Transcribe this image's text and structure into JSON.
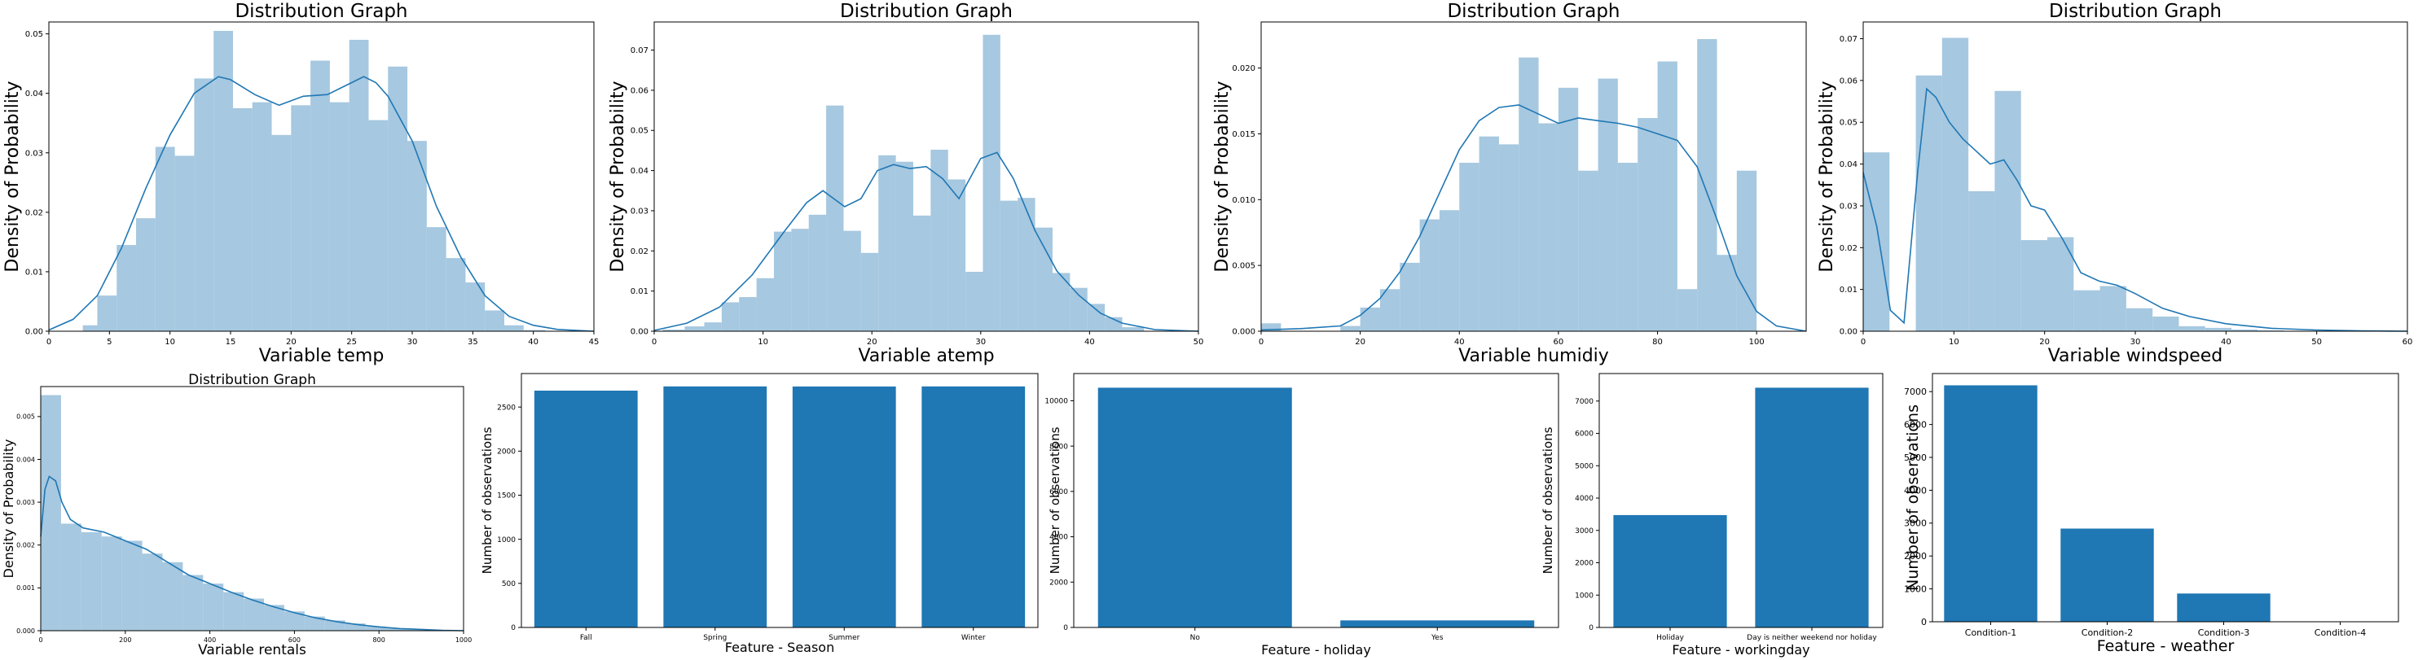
{
  "chart_data": [
    {
      "type": "histogram",
      "title": "Distribution Graph",
      "xlabel": "Variable temp",
      "ylabel": "Density of Probability",
      "xlim": [
        0,
        45
      ],
      "ylim": [
        0,
        0.052
      ],
      "xticks": [
        0,
        5,
        10,
        15,
        20,
        25,
        30,
        35,
        40,
        45
      ],
      "yticks": [
        0.0,
        0.01,
        0.02,
        0.03,
        0.04,
        0.05
      ],
      "ytick_decimals": 2,
      "bin_edges": [
        0.8,
        2.8,
        4.0,
        5.6,
        7.2,
        8.8,
        10.4,
        12.0,
        13.6,
        15.2,
        16.8,
        18.4,
        20.0,
        21.6,
        23.2,
        24.8,
        26.4,
        28.0,
        29.6,
        31.2,
        32.8,
        34.4,
        36.0,
        37.6,
        39.2,
        41.0
      ],
      "bin_values": [
        0.0,
        0.001,
        0.006,
        0.0145,
        0.019,
        0.031,
        0.0295,
        0.0425,
        0.0505,
        0.0375,
        0.0385,
        0.033,
        0.038,
        0.0455,
        0.0385,
        0.049,
        0.0355,
        0.0445,
        0.032,
        0.0175,
        0.0123,
        0.0082,
        0.0035,
        0.001,
        0.0002
      ],
      "kde": {
        "x": [
          0,
          2,
          4,
          6,
          8,
          10,
          12,
          14,
          15,
          17,
          19,
          21,
          23,
          25,
          26,
          27,
          28,
          30,
          32,
          34,
          36,
          38,
          40,
          42,
          45
        ],
        "y": [
          0.0002,
          0.002,
          0.006,
          0.014,
          0.024,
          0.033,
          0.04,
          0.0428,
          0.0423,
          0.0398,
          0.038,
          0.0395,
          0.0398,
          0.0418,
          0.0428,
          0.0418,
          0.0395,
          0.032,
          0.021,
          0.0125,
          0.006,
          0.0025,
          0.001,
          0.0003,
          0.0
        ]
      }
    },
    {
      "type": "histogram",
      "title": "Distribution Graph",
      "xlabel": "Variable atemp",
      "ylabel": "Density of Probability",
      "xlim": [
        0,
        50
      ],
      "ylim": [
        0,
        0.077
      ],
      "xticks": [
        0,
        10,
        20,
        30,
        40,
        50
      ],
      "yticks": [
        0.0,
        0.01,
        0.02,
        0.03,
        0.04,
        0.05,
        0.06,
        0.07
      ],
      "ytick_decimals": 2,
      "bin_edges": [
        0.8,
        2.8,
        4.6,
        6.2,
        7.8,
        9.4,
        11.0,
        12.6,
        14.2,
        15.8,
        17.4,
        19.0,
        20.6,
        22.2,
        23.8,
        25.4,
        27.0,
        28.6,
        30.2,
        31.8,
        33.4,
        35.0,
        36.6,
        38.2,
        39.8,
        41.4,
        43.0,
        45.0
      ],
      "bin_values": [
        0.0004,
        0.0012,
        0.0022,
        0.0072,
        0.0085,
        0.0132,
        0.0248,
        0.0255,
        0.029,
        0.0562,
        0.025,
        0.0195,
        0.0438,
        0.0422,
        0.0288,
        0.0452,
        0.0378,
        0.0148,
        0.0738,
        0.0325,
        0.0332,
        0.0258,
        0.0145,
        0.0108,
        0.0068,
        0.0035,
        0.001
      ],
      "kde": {
        "x": [
          0,
          3,
          6,
          9,
          12,
          14,
          15.5,
          17.5,
          19,
          20.5,
          22,
          23.5,
          25,
          26.5,
          28,
          30,
          31.5,
          33,
          35,
          37,
          39,
          41,
          43,
          46,
          50
        ],
        "y": [
          0.0002,
          0.002,
          0.006,
          0.014,
          0.025,
          0.032,
          0.035,
          0.031,
          0.033,
          0.04,
          0.0415,
          0.0405,
          0.041,
          0.038,
          0.033,
          0.043,
          0.0445,
          0.038,
          0.025,
          0.015,
          0.009,
          0.0045,
          0.002,
          0.0004,
          0.0
        ]
      }
    },
    {
      "type": "histogram",
      "title": "Distribution Graph",
      "xlabel": "Variable humidiy",
      "ylabel": "Density of Probability",
      "xlim": [
        0,
        110
      ],
      "ylim": [
        0,
        0.0235
      ],
      "xticks": [
        0,
        20,
        40,
        60,
        80,
        100
      ],
      "yticks": [
        0.0,
        0.005,
        0.01,
        0.015,
        0.02
      ],
      "ytick_decimals": 3,
      "bin_edges": [
        0,
        4,
        8,
        12,
        16,
        20,
        24,
        28,
        32,
        36,
        40,
        44,
        48,
        52,
        56,
        60,
        64,
        68,
        72,
        76,
        80,
        84,
        88,
        92,
        96,
        100
      ],
      "bin_values": [
        0.0006,
        0.0,
        0.0,
        0.0,
        0.0004,
        0.0018,
        0.0032,
        0.0052,
        0.0085,
        0.0092,
        0.0128,
        0.0148,
        0.0142,
        0.0208,
        0.0158,
        0.0185,
        0.0122,
        0.0192,
        0.0128,
        0.0162,
        0.0205,
        0.0032,
        0.0222,
        0.0058,
        0.0122
      ],
      "kde": {
        "x": [
          0,
          8,
          16,
          20,
          24,
          28,
          32,
          36,
          40,
          44,
          48,
          52,
          56,
          60,
          64,
          68,
          72,
          76,
          80,
          84,
          88,
          92,
          96,
          100,
          104,
          110
        ],
        "y": [
          0.0001,
          0.0002,
          0.0004,
          0.0012,
          0.0025,
          0.0045,
          0.0072,
          0.0105,
          0.0138,
          0.016,
          0.017,
          0.0172,
          0.0165,
          0.0158,
          0.0162,
          0.016,
          0.0158,
          0.0155,
          0.015,
          0.0145,
          0.0125,
          0.0085,
          0.0042,
          0.0015,
          0.0004,
          0.0
        ]
      }
    },
    {
      "type": "histogram",
      "title": "Distribution Graph",
      "xlabel": "Variable windspeed",
      "ylabel": "Density of Probability",
      "xlim": [
        0,
        60
      ],
      "ylim": [
        0,
        0.074
      ],
      "xticks": [
        0,
        10,
        20,
        30,
        40,
        50,
        60
      ],
      "yticks": [
        0.0,
        0.01,
        0.02,
        0.03,
        0.04,
        0.05,
        0.06,
        0.07
      ],
      "ytick_decimals": 2,
      "bin_edges": [
        0,
        2.9,
        5.8,
        8.7,
        11.6,
        14.5,
        17.4,
        20.3,
        23.2,
        26.1,
        29.0,
        31.9,
        34.8,
        37.7,
        40.6,
        43.5,
        46.4,
        49.3,
        52.2,
        55.1,
        58.0
      ],
      "bin_values": [
        0.0428,
        0.0,
        0.0612,
        0.0702,
        0.0335,
        0.0575,
        0.0218,
        0.0225,
        0.0098,
        0.0108,
        0.0055,
        0.0035,
        0.0012,
        0.0008,
        0.0004,
        0.0002,
        0.0001,
        0.0001,
        0.0001,
        0.0001
      ],
      "kde": {
        "x": [
          0,
          1.5,
          3,
          4.5,
          6,
          7,
          8,
          9.5,
          11,
          12.5,
          14,
          15.5,
          17,
          18.5,
          20,
          22,
          24,
          26,
          28,
          30,
          33,
          36,
          40,
          45,
          50,
          55,
          60
        ],
        "y": [
          0.038,
          0.025,
          0.005,
          0.002,
          0.038,
          0.058,
          0.056,
          0.05,
          0.046,
          0.043,
          0.04,
          0.041,
          0.036,
          0.03,
          0.029,
          0.022,
          0.014,
          0.012,
          0.011,
          0.009,
          0.0055,
          0.0035,
          0.0018,
          0.0007,
          0.0003,
          0.0001,
          0.0
        ]
      }
    },
    {
      "type": "histogram",
      "title": "Distribution Graph",
      "xlabel": "Variable rentals",
      "ylabel": "Density of Probability",
      "xlim": [
        0,
        1000
      ],
      "ylim": [
        0,
        0.0057
      ],
      "xticks": [
        0,
        200,
        400,
        600,
        800,
        1000
      ],
      "yticks": [
        0.0,
        0.001,
        0.002,
        0.003,
        0.004,
        0.005
      ],
      "ytick_decimals": 3,
      "bin_edges": [
        0,
        48,
        96,
        144,
        192,
        240,
        288,
        336,
        384,
        432,
        480,
        528,
        576,
        624,
        672,
        720,
        768,
        816,
        864,
        912,
        960,
        980
      ],
      "bin_values": [
        0.0055,
        0.0025,
        0.0023,
        0.0022,
        0.0021,
        0.0018,
        0.0016,
        0.0013,
        0.0011,
        0.0009,
        0.00075,
        0.0006,
        0.00045,
        0.00033,
        0.00024,
        0.00017,
        0.0001,
        6e-05,
        4e-05,
        2e-05,
        1e-05
      ],
      "kde": {
        "x": [
          0,
          10,
          20,
          35,
          50,
          70,
          100,
          150,
          200,
          250,
          300,
          350,
          400,
          450,
          500,
          550,
          600,
          650,
          700,
          750,
          800,
          850,
          900,
          950,
          1000
        ],
        "y": [
          0.0022,
          0.0033,
          0.0036,
          0.0035,
          0.003,
          0.0026,
          0.0024,
          0.0023,
          0.0021,
          0.0019,
          0.0016,
          0.0013,
          0.0011,
          0.0009,
          0.00072,
          0.00056,
          0.00042,
          0.0003,
          0.00021,
          0.00014,
          9e-05,
          5e-05,
          3e-05,
          1e-05,
          0.0
        ]
      }
    },
    {
      "type": "bar",
      "title": "",
      "xlabel": "Feature - Season",
      "ylabel": "Number of observations",
      "categories": [
        "Fall",
        "Spring",
        "Summer",
        "Winter"
      ],
      "values": [
        2686,
        2734,
        2733,
        2734
      ],
      "ylim": [
        0,
        2880
      ],
      "yticks": [
        0,
        500,
        1000,
        1500,
        2000,
        2500
      ]
    },
    {
      "type": "bar",
      "title": "",
      "xlabel": "Feature - holiday",
      "ylabel": "Number of observations",
      "categories": [
        "No",
        "Yes"
      ],
      "values": [
        10575,
        311
      ],
      "ylim": [
        0,
        11200
      ],
      "yticks": [
        0,
        2000,
        4000,
        6000,
        8000,
        10000
      ]
    },
    {
      "type": "bar",
      "title": "",
      "xlabel": "Feature - workingday",
      "ylabel": "Number of observations",
      "categories": [
        "Holiday",
        "Day is neither weekend nor holiday"
      ],
      "values": [
        3474,
        7412
      ],
      "ylim": [
        0,
        7850
      ],
      "yticks": [
        0,
        1000,
        2000,
        3000,
        4000,
        5000,
        6000,
        7000
      ]
    },
    {
      "type": "bar",
      "title": "",
      "xlabel": "Feature - weather",
      "ylabel": "Number of observations",
      "categories": [
        "Condition-1",
        "Condition-2",
        "Condition-3",
        "Condition-4"
      ],
      "values": [
        7192,
        2834,
        859,
        1
      ],
      "ylim": [
        0,
        7550
      ],
      "yticks": [
        0,
        1000,
        2000,
        3000,
        4000,
        5000,
        6000,
        7000
      ]
    }
  ],
  "colors": {
    "hist_fill": "#a6c8e0",
    "line": "#1f77b4",
    "bar": "#1f77b4"
  }
}
